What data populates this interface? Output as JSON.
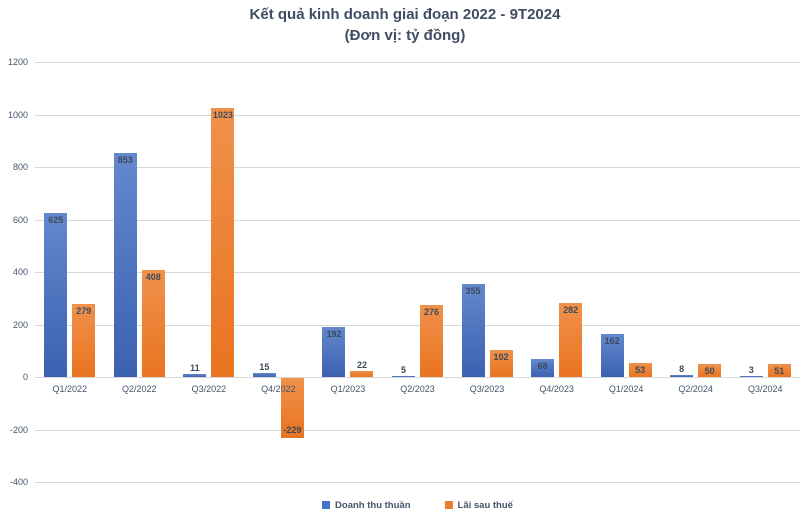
{
  "chart_data": {
    "type": "bar",
    "title": "Kết quả kinh doanh giai đoạn 2022 - 9T2024",
    "subtitle": "(Đơn vị: tỷ đồng)",
    "categories": [
      "Q1/2022",
      "Q2/2022",
      "Q3/2022",
      "Q4/2022",
      "Q1/2023",
      "Q2/2023",
      "Q3/2023",
      "Q4/2023",
      "Q1/2024",
      "Q2/2024",
      "Q3/2024"
    ],
    "series": [
      {
        "name": "Doanh thu thuần",
        "color": "#4472c4",
        "values": [
          625,
          853,
          11,
          15,
          192,
          5,
          355,
          68,
          162,
          8,
          3
        ]
      },
      {
        "name": "Lãi sau thuế",
        "color": "#ed7d31",
        "values": [
          279,
          408,
          1023,
          -229,
          22,
          276,
          102,
          282,
          53,
          50,
          51
        ]
      }
    ],
    "ylim": [
      -400,
      1200
    ],
    "ytick_step": 200,
    "yticks": [
      1200,
      1000,
      800,
      600,
      400,
      200,
      0,
      -200,
      -400
    ],
    "grid": true,
    "legend_position": "bottom",
    "data_labels": true
  },
  "style": {
    "text_color": "#44546a",
    "title_color": "#3f4d63",
    "grid_color": "#d9d9d9",
    "data_label_color": "#3d4a5c",
    "bar_gradients": {
      "blue": [
        "#6488cc",
        "#3b61b1"
      ],
      "orange": [
        "#f0914b",
        "#e97420"
      ]
    }
  }
}
